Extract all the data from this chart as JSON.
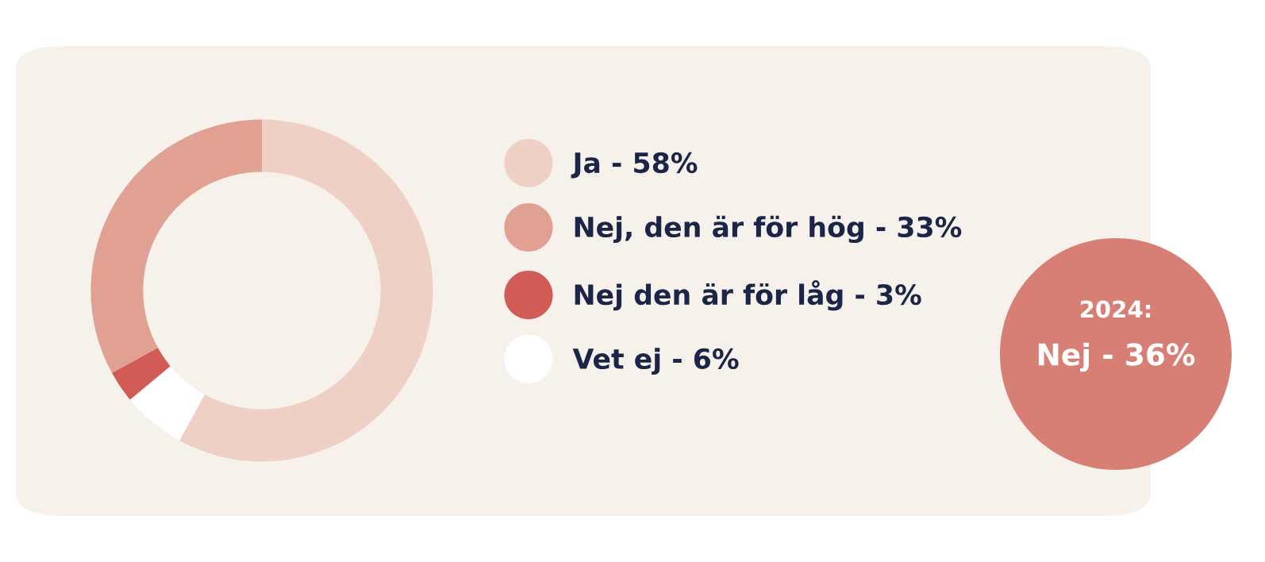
{
  "chart_data": {
    "type": "donut",
    "categories": [
      "Ja - 58%",
      "Nej, den är för hög - 33%",
      "Nej den är för låg - 3%",
      "Vet ej - 6%"
    ],
    "values": [
      58,
      33,
      3,
      6
    ],
    "colors": [
      "#efd0c5",
      "#e0a193",
      "#d15b55",
      "#ffffff"
    ],
    "legend": "right",
    "annotations": [
      "2024:",
      "Nej - 36%"
    ]
  }
}
